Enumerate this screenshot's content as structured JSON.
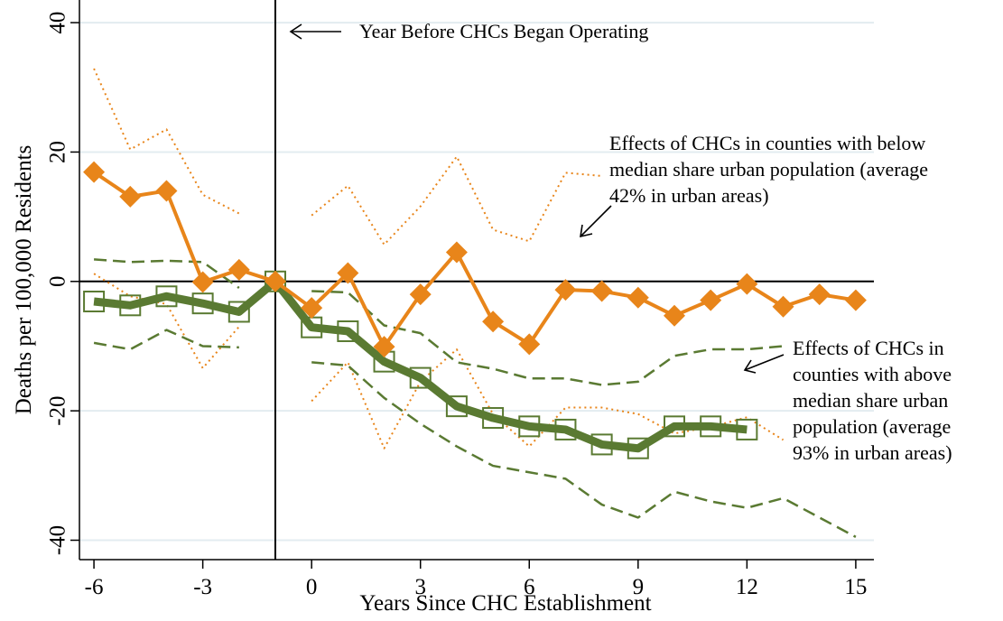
{
  "chart_data": {
    "type": "line",
    "x_label": "Years Since CHC Establishment",
    "y_label": "Deaths per 100,000 Residents",
    "x": [
      -6,
      -5,
      -4,
      -3,
      -2,
      -1,
      0,
      1,
      2,
      3,
      4,
      5,
      6,
      7,
      8,
      9,
      10,
      11,
      12,
      13,
      14,
      15
    ],
    "xlim": [
      -6.4,
      15.5
    ],
    "ylim": [
      -43,
      43.5
    ],
    "xticks": [
      -6,
      -3,
      0,
      3,
      6,
      9,
      12,
      15
    ],
    "yticks": [
      -40,
      -20,
      0,
      20,
      40
    ],
    "grid": true,
    "reference_lines": {
      "y": 0,
      "x": -1
    },
    "series": [
      {
        "color": "#e8851a",
        "style": "dotted",
        "width": 2,
        "values": [
          32.9,
          20.4,
          23.5,
          13.4,
          10.5,
          null,
          10.2,
          14.8,
          5.7,
          11.6,
          19.3,
          8.0,
          6.2,
          16.8,
          16.3,
          null,
          null,
          null,
          null,
          null,
          null,
          null
        ]
      },
      {
        "color": "#e8851a",
        "style": "dotted",
        "width": 2,
        "values": [
          1.2,
          -2.3,
          -3.5,
          -13.4,
          -7.0,
          null,
          -18.5,
          -12.5,
          -25.8,
          -15.5,
          -10.5,
          -20.5,
          -25.5,
          -19.5,
          -19.5,
          -20.5,
          -23.5,
          -22.5,
          -21.0,
          -24.5,
          null,
          null
        ]
      },
      {
        "color": "#5a7a32",
        "style": "dashed",
        "width": 2.5,
        "values": [
          3.4,
          3.0,
          3.2,
          3.0,
          -1.0,
          null,
          -1.5,
          -1.7,
          -6.8,
          -8.0,
          -12.5,
          -13.5,
          -15.0,
          -15.0,
          -16.0,
          -15.5,
          -11.5,
          -10.5,
          -10.5,
          -10.0,
          null,
          null
        ]
      },
      {
        "color": "#5a7a32",
        "style": "dashed",
        "width": 2.5,
        "values": [
          -9.5,
          -10.5,
          -7.5,
          -10.0,
          -10.2,
          null,
          -12.5,
          -13.0,
          -18.0,
          -22.0,
          -25.5,
          -28.5,
          -29.5,
          -30.5,
          -34.5,
          -36.5,
          -32.5,
          -34.0,
          -35.0,
          -33.5,
          -36.5,
          -39.5
        ]
      },
      {
        "color": "#5a7a32",
        "style": "solid",
        "width": 9,
        "marker": "square",
        "values": [
          -3.1,
          -3.7,
          -2.3,
          -3.4,
          -4.7,
          0,
          -7.1,
          -7.7,
          -12.4,
          -14.9,
          -19.3,
          -21.1,
          -22.4,
          -22.9,
          -25.2,
          -25.8,
          -22.4,
          -22.4,
          -22.9,
          null,
          null,
          null
        ]
      },
      {
        "color": "#e8851a",
        "style": "solid",
        "width": 4,
        "marker": "diamond",
        "values": [
          16.9,
          13.1,
          14.0,
          -0.1,
          1.8,
          0,
          -4.1,
          1.3,
          -10.1,
          -2.0,
          4.5,
          -6.2,
          -9.7,
          -1.3,
          -1.5,
          -2.5,
          -5.3,
          -2.9,
          -0.4,
          -3.9,
          -2.0,
          -2.9
        ]
      }
    ],
    "annotations": [
      {
        "lines": [
          "Year Before CHCs Began Operating"
        ]
      },
      {
        "lines": [
          "Effects of CHCs in counties with below",
          "median share urban population (average",
          "42% in urban areas)"
        ]
      },
      {
        "lines": [
          "Effects of CHCs in",
          "counties with above",
          "median share urban",
          "population (average",
          "93% in urban areas)"
        ]
      }
    ]
  }
}
